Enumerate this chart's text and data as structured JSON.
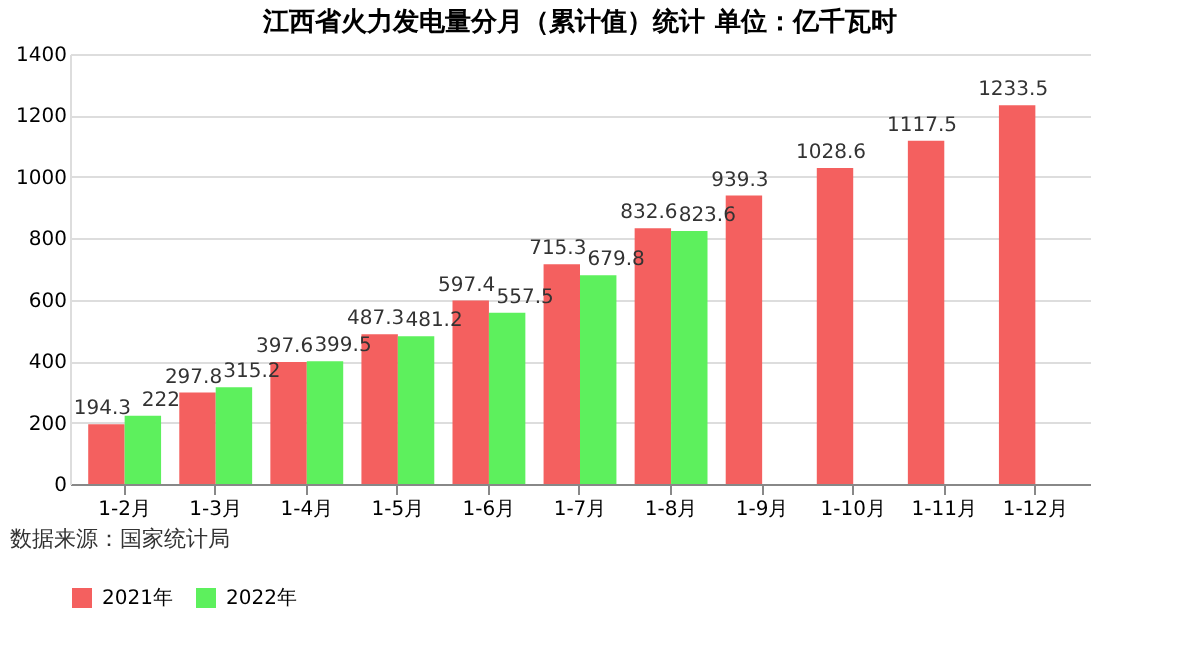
{
  "chart_data": {
    "type": "bar",
    "title": "江西省火力发电量分月（累计值）统计 单位：亿千瓦时",
    "categories": [
      "1-2月",
      "1-3月",
      "1-4月",
      "1-5月",
      "1-6月",
      "1-7月",
      "1-8月",
      "1-9月",
      "1-10月",
      "1-11月",
      "1-12月"
    ],
    "series": [
      {
        "name": "2021年",
        "color": "#f4605f",
        "values": [
          194.3,
          297.8,
          397.6,
          487.3,
          597.4,
          715.3,
          832.6,
          939.3,
          1028.6,
          1117.5,
          1233.5
        ]
      },
      {
        "name": "2022年",
        "color": "#5df05d",
        "values": [
          222,
          315.2,
          399.5,
          481.2,
          557.5,
          679.8,
          823.6,
          null,
          null,
          null,
          null
        ]
      }
    ],
    "ylim": [
      0,
      1400
    ],
    "yticks": [
      0,
      200,
      400,
      600,
      800,
      1000,
      1200,
      1400
    ],
    "grid": "y",
    "legend": "bottom",
    "data_labels": true,
    "annotations": [
      "数据来源：国家统计局"
    ]
  }
}
